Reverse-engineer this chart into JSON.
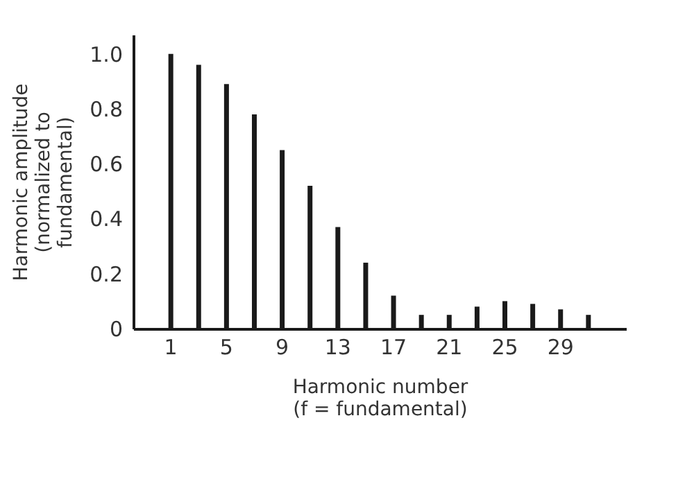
{
  "chart_data": {
    "type": "bar",
    "xlabel": "Harmonic number\n(f = fundamental)",
    "ylabel": "Harmonic amplitude\n(normalized to\nfundamental)",
    "categories": [
      "1",
      null,
      "5",
      null,
      "9",
      null,
      "13",
      null,
      "17",
      null,
      "21",
      null,
      "25",
      null,
      "29",
      null
    ],
    "values": [
      1.0,
      0.96,
      0.89,
      0.78,
      0.65,
      0.52,
      0.37,
      0.24,
      0.12,
      0.05,
      0.05,
      0.08,
      0.1,
      0.09,
      0.07,
      0.05
    ],
    "color": "#1a1a1a",
    "ylim": [
      0,
      1.07
    ],
    "yticks": [
      {
        "value": 0,
        "label": "0"
      },
      0.2,
      0.4,
      0.6,
      0.8,
      {
        "value": 1,
        "label": "1.0"
      }
    ],
    "grid": false
  }
}
